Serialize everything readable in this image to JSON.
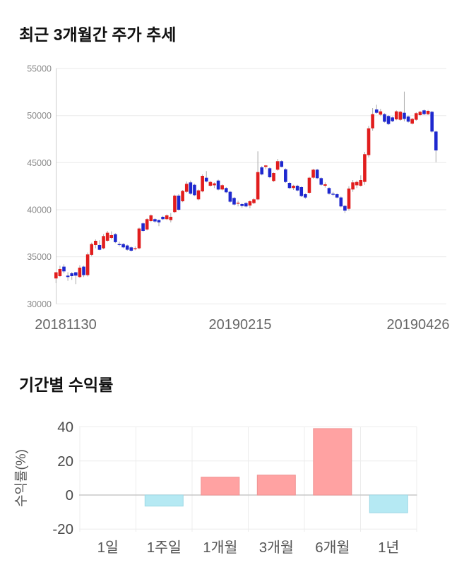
{
  "page": {
    "background": "#ffffff"
  },
  "chart_data": [
    {
      "type": "candlestick",
      "title": "최근 3개월간 주가 추세",
      "xlabel": "",
      "ylabel": "",
      "x_tick_labels": [
        "20181130",
        "20190215",
        "20190426"
      ],
      "y_ticks": [
        55000,
        50000,
        45000,
        40000,
        35000,
        30000
      ],
      "ylim": [
        30000,
        55000
      ],
      "grid": true,
      "legend": "none",
      "up_color": "#e11d1d",
      "down_color": "#1e28cf",
      "wick_color": "#aaaaaa",
      "grid_color": "#eaeaea",
      "axis_color": "#cccccc",
      "tick_text_color": "#8a8a8a",
      "date_text_color": "#666666",
      "ohlc": [
        [
          32700,
          33400,
          32200,
          33350
        ],
        [
          32950,
          34050,
          32850,
          33700
        ],
        [
          33950,
          34200,
          33250,
          33450
        ],
        [
          33000,
          33350,
          32450,
          32850
        ],
        [
          33250,
          33400,
          32550,
          32950
        ],
        [
          33350,
          33400,
          32100,
          33000
        ],
        [
          32850,
          34100,
          32750,
          33850
        ],
        [
          33950,
          34050,
          32850,
          33050
        ],
        [
          33050,
          35450,
          32900,
          35250
        ],
        [
          35200,
          36500,
          35050,
          36350
        ],
        [
          36250,
          36850,
          35900,
          36700
        ],
        [
          36250,
          36750,
          35700,
          35750
        ],
        [
          35900,
          37400,
          35800,
          37200
        ],
        [
          36700,
          37750,
          36600,
          37550
        ],
        [
          37000,
          37700,
          36850,
          37300
        ],
        [
          37400,
          37500,
          36450,
          36550
        ],
        [
          36350,
          36600,
          36100,
          36250
        ],
        [
          36350,
          36450,
          35900,
          36000
        ],
        [
          36200,
          36300,
          35650,
          35750
        ],
        [
          36000,
          36100,
          35550,
          35650
        ],
        [
          35800,
          36100,
          35700,
          35900
        ],
        [
          35900,
          38100,
          35800,
          38000
        ],
        [
          38550,
          38650,
          37650,
          37750
        ],
        [
          37900,
          39100,
          37800,
          39000
        ],
        [
          38800,
          39500,
          38700,
          39400
        ],
        [
          39000,
          39100,
          38600,
          38750
        ],
        [
          38900,
          38950,
          38250,
          38650
        ],
        [
          39250,
          39350,
          38900,
          39000
        ],
        [
          39000,
          39500,
          38900,
          39400
        ],
        [
          38900,
          39650,
          38650,
          39250
        ],
        [
          39750,
          41600,
          39650,
          41500
        ],
        [
          41500,
          41650,
          39900,
          40000
        ],
        [
          40900,
          42100,
          40800,
          42000
        ],
        [
          41900,
          43000,
          41800,
          42750
        ],
        [
          42900,
          43100,
          41600,
          41700
        ],
        [
          42650,
          42750,
          41450,
          41550
        ],
        [
          41100,
          42150,
          41000,
          42050
        ],
        [
          41950,
          43750,
          41850,
          43600
        ],
        [
          43400,
          44100,
          42900,
          43000
        ],
        [
          42550,
          43050,
          42450,
          42950
        ],
        [
          42600,
          42900,
          42300,
          42800
        ],
        [
          43100,
          43200,
          42050,
          42150
        ],
        [
          42150,
          42700,
          42050,
          42600
        ],
        [
          42300,
          42400,
          41750,
          41850
        ],
        [
          41900,
          42000,
          40750,
          40850
        ],
        [
          41250,
          41350,
          40450,
          40550
        ],
        [
          40650,
          40950,
          40350,
          40750
        ],
        [
          40600,
          40700,
          40200,
          40400
        ],
        [
          40700,
          40800,
          40250,
          40350
        ],
        [
          40450,
          41000,
          40150,
          40900
        ],
        [
          40700,
          41250,
          40600,
          41100
        ],
        [
          41100,
          46200,
          41000,
          44000
        ],
        [
          44500,
          44650,
          43650,
          43750
        ],
        [
          44550,
          44750,
          44300,
          44700
        ],
        [
          44400,
          44500,
          43350,
          43450
        ],
        [
          43050,
          43950,
          42950,
          43900
        ],
        [
          44250,
          45400,
          44150,
          45150
        ],
        [
          45150,
          45250,
          44500,
          44550
        ],
        [
          44300,
          44400,
          42850,
          42950
        ],
        [
          42850,
          42950,
          42200,
          42300
        ],
        [
          42300,
          42650,
          42100,
          42550
        ],
        [
          42550,
          42650,
          41950,
          42050
        ],
        [
          42400,
          42500,
          41350,
          41450
        ],
        [
          41650,
          41750,
          41150,
          41300
        ],
        [
          41800,
          43500,
          41700,
          43400
        ],
        [
          43400,
          44350,
          43300,
          44250
        ],
        [
          44250,
          44350,
          43250,
          43350
        ],
        [
          43350,
          43450,
          42550,
          42650
        ],
        [
          42550,
          42900,
          42350,
          42700
        ],
        [
          42300,
          42400,
          41600,
          41700
        ],
        [
          41700,
          41900,
          41450,
          41650
        ],
        [
          41650,
          41750,
          41200,
          41300
        ],
        [
          41300,
          41400,
          40250,
          40350
        ],
        [
          40400,
          40500,
          39650,
          39900
        ],
        [
          40100,
          42500,
          39900,
          42250
        ],
        [
          42150,
          43150,
          41900,
          42900
        ],
        [
          42600,
          43100,
          42300,
          42950
        ],
        [
          42550,
          43650,
          42450,
          43150
        ],
        [
          42950,
          46150,
          42650,
          45900
        ],
        [
          45800,
          48900,
          45550,
          48650
        ],
        [
          48650,
          50800,
          48400,
          50150
        ],
        [
          50650,
          51150,
          50200,
          50300
        ],
        [
          50100,
          50700,
          49950,
          50450
        ],
        [
          50150,
          50250,
          49250,
          49350
        ],
        [
          49950,
          50050,
          49000,
          49100
        ],
        [
          49800,
          49900,
          49300,
          49400
        ],
        [
          49600,
          50550,
          49500,
          50450
        ],
        [
          49550,
          50500,
          49450,
          50400
        ],
        [
          50300,
          52550,
          49400,
          49650
        ],
        [
          49900,
          50000,
          49250,
          49350
        ],
        [
          49150,
          49750,
          49050,
          49650
        ],
        [
          49550,
          50350,
          49450,
          50250
        ],
        [
          50050,
          50500,
          49950,
          50400
        ],
        [
          50550,
          50650,
          50050,
          50150
        ],
        [
          50150,
          50600,
          50050,
          50500
        ],
        [
          50400,
          50500,
          48200,
          48300
        ],
        [
          48300,
          48400,
          45050,
          46300
        ]
      ]
    },
    {
      "type": "bar",
      "title": "기간별 수익률",
      "ylabel": "수익률(%)",
      "categories": [
        "1일",
        "1주일",
        "1개월",
        "3개월",
        "6개월",
        "1년"
      ],
      "values": [
        0,
        -6.5,
        10.5,
        11.7,
        39,
        -10.4
      ],
      "y_ticks": [
        40,
        20,
        0,
        -20
      ],
      "ylim": [
        -24,
        44
      ],
      "grid": true,
      "legend": "none",
      "positive_color": "#ffa2a2",
      "positive_border_color": "#ef9292",
      "negative_color": "#b5e9f3",
      "negative_border_color": "#9ed9e6",
      "grid_color": "#ececec",
      "zero_line_color": "#c8c8c8",
      "tick_text_color": "#4a4a4a",
      "category_text_color": "#555555",
      "ylabel_color": "#555555"
    }
  ]
}
